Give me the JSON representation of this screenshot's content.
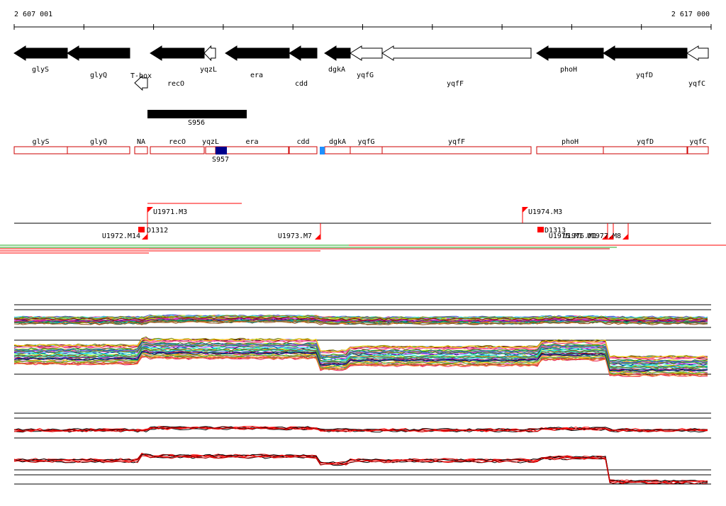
{
  "ruler": {
    "start_label": "2 607 001",
    "end_label": "2 617 000"
  },
  "genes": [
    {
      "label": "glyS",
      "strand": "rev",
      "filled": true
    },
    {
      "label": "glyQ",
      "strand": "rev",
      "filled": true
    },
    {
      "label": "T-box",
      "strand": "rev",
      "filled": false
    },
    {
      "label": "recO",
      "strand": "rev",
      "filled": true
    },
    {
      "label": "yqzL",
      "strand": "rev",
      "filled": false
    },
    {
      "label": "era",
      "strand": "rev",
      "filled": true
    },
    {
      "label": "cdd",
      "strand": "rev",
      "filled": true
    },
    {
      "label": "dgkA",
      "strand": "rev",
      "filled": true
    },
    {
      "label": "yqfG",
      "strand": "rev",
      "filled": false
    },
    {
      "label": "yqfF",
      "strand": "rev",
      "filled": false
    },
    {
      "label": "phoH",
      "strand": "rev",
      "filled": true
    },
    {
      "label": "yqfD",
      "strand": "rev",
      "filled": true
    },
    {
      "label": "yqfC",
      "strand": "rev",
      "filled": false
    }
  ],
  "regions": [
    {
      "label": "S956"
    }
  ],
  "annotation_boxes": [
    {
      "label": "glyS"
    },
    {
      "label": "glyQ"
    },
    {
      "label": "NA"
    },
    {
      "label": "recO"
    },
    {
      "label": "yqzL"
    },
    {
      "label": "era"
    },
    {
      "label": "cdd"
    },
    {
      "label": "dgkA"
    },
    {
      "label": "yqfG"
    },
    {
      "label": "yqfF"
    },
    {
      "label": "phoH"
    },
    {
      "label": "yqfD"
    },
    {
      "label": "yqfC"
    }
  ],
  "small_features": [
    {
      "label": "S957",
      "color": "#00008b"
    },
    {
      "label": "",
      "color": "#1e90ff"
    }
  ],
  "upper_markers": [
    {
      "label": "U1971.M3"
    },
    {
      "label": "U1974.M3"
    }
  ],
  "lower_markers": [
    {
      "label": "U1972.M14"
    },
    {
      "label": "U1973.M7"
    },
    {
      "label": "U1975.M1"
    },
    {
      "label": "U1976.M1"
    },
    {
      "label": "U1977.M8"
    }
  ],
  "boxed_markers": [
    {
      "label": "D1312"
    },
    {
      "label": "D1313"
    }
  ],
  "colors": {
    "gene_fill": "#000000",
    "annotation_border": "#cc0000",
    "marker": "#ff0000",
    "track_lines": [
      "#e6194b",
      "#3cb44b",
      "#4363d8",
      "#f58231",
      "#911eb4",
      "#46f0f0",
      "#f032e6",
      "#bcf60c",
      "#008080",
      "#9a6324",
      "#800000",
      "#808000",
      "#000075",
      "#ff69b4",
      "#ffd700",
      "#00ced1",
      "#228b22",
      "#8b4513"
    ]
  }
}
